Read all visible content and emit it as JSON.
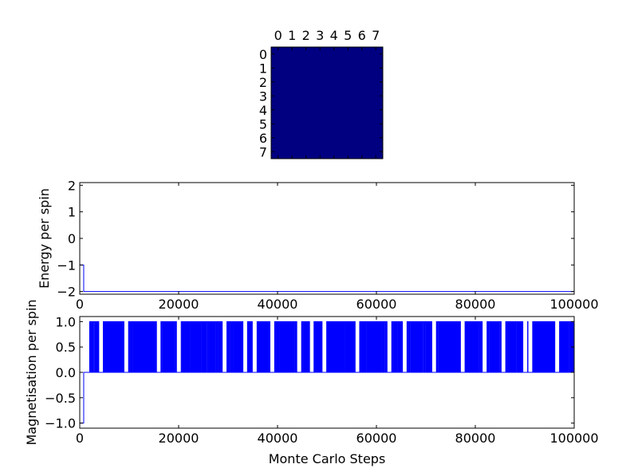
{
  "chart_data": [
    {
      "type": "heatmap",
      "rows": 8,
      "cols": 8,
      "row_tick_labels": [
        "0",
        "1",
        "2",
        "3",
        "4",
        "5",
        "6",
        "7"
      ],
      "col_tick_labels": [
        "0",
        "1",
        "2",
        "3",
        "4",
        "5",
        "6",
        "7"
      ],
      "values": [
        [
          -1,
          -1,
          -1,
          -1,
          -1,
          -1,
          -1,
          -1
        ],
        [
          -1,
          -1,
          -1,
          -1,
          -1,
          -1,
          -1,
          -1
        ],
        [
          -1,
          -1,
          -1,
          -1,
          -1,
          -1,
          -1,
          -1
        ],
        [
          -1,
          -1,
          -1,
          -1,
          -1,
          -1,
          -1,
          -1
        ],
        [
          -1,
          -1,
          -1,
          -1,
          -1,
          -1,
          -1,
          -1
        ],
        [
          -1,
          -1,
          -1,
          -1,
          -1,
          -1,
          -1,
          -1
        ],
        [
          -1,
          -1,
          -1,
          -1,
          -1,
          -1,
          -1,
          -1
        ],
        [
          -1,
          -1,
          -1,
          -1,
          -1,
          -1,
          -1,
          -1
        ]
      ],
      "color": "#000080"
    },
    {
      "type": "line",
      "xlabel": "",
      "ylabel": "Energy per spin",
      "xlim": [
        0,
        100000
      ],
      "ylim": [
        -2.1,
        2.1
      ],
      "x_ticks": [
        0,
        20000,
        40000,
        60000,
        80000,
        100000
      ],
      "y_ticks": [
        -2,
        -1,
        0,
        1,
        2
      ],
      "series": [
        {
          "color": "#0000ff",
          "x": [
            0,
            800,
            800,
            100000
          ],
          "y": [
            -1,
            -1,
            -2,
            -2
          ]
        }
      ]
    },
    {
      "type": "line",
      "xlabel": "Monte Carlo Steps",
      "ylabel": "Magnetisation per spin",
      "xlim": [
        0,
        100000
      ],
      "ylim": [
        -1.1,
        1.1
      ],
      "x_ticks": [
        0,
        20000,
        40000,
        60000,
        80000,
        100000
      ],
      "y_ticks": [
        -1.0,
        -0.5,
        0.0,
        0.5,
        1.0
      ],
      "y_tick_labels": [
        "−1.0",
        "−0.5",
        "0.0",
        "0.5",
        "1.0"
      ],
      "series": [
        {
          "color": "#0000ff",
          "x": [
            0,
            800,
            800,
            2000
          ],
          "y": [
            -1,
            -1,
            0,
            0
          ],
          "switching": {
            "x_start": 2000,
            "x_end": 100000,
            "low": 0.0,
            "high": 1.0
          }
        }
      ]
    }
  ]
}
